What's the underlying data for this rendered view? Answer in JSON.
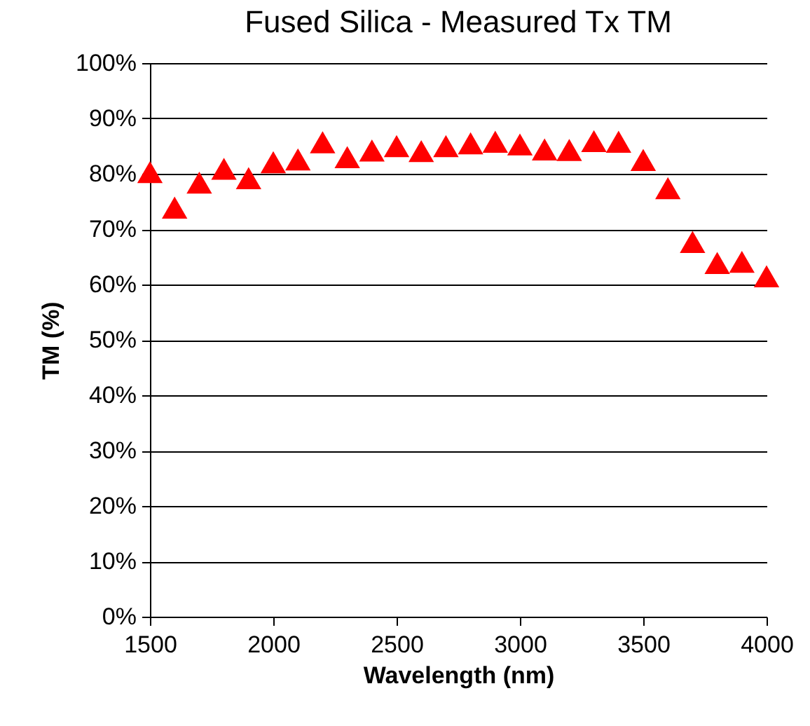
{
  "chart_data": {
    "type": "scatter",
    "title": "Fused Silica - Measured Tx TM",
    "xlabel": "Wavelength (nm)",
    "ylabel": "TM (%)",
    "x": [
      1500,
      1600,
      1700,
      1800,
      1900,
      2000,
      2100,
      2200,
      2300,
      2400,
      2500,
      2600,
      2700,
      2800,
      2900,
      3000,
      3100,
      3200,
      3300,
      3400,
      3500,
      3600,
      3700,
      3800,
      3900,
      4000
    ],
    "series": [
      {
        "color": "#ff0000",
        "values": [
          80.3,
          73.9,
          78.4,
          80.9,
          79.2,
          82.1,
          82.6,
          85.7,
          83.0,
          84.2,
          85.0,
          84.1,
          85.0,
          85.5,
          85.8,
          85.3,
          84.4,
          84.3,
          85.9,
          85.8,
          82.5,
          77.4,
          67.7,
          63.9,
          64.1,
          61.5
        ]
      }
    ],
    "xlim": [
      1500,
      4000
    ],
    "xticks": [
      1500,
      2000,
      2500,
      3000,
      3500,
      4000
    ],
    "ylim": [
      0,
      100
    ],
    "yticks": [
      {
        "value": 0,
        "label": "0%"
      },
      {
        "value": 10,
        "label": "10%"
      },
      {
        "value": 20,
        "label": "20%"
      },
      {
        "value": 30,
        "label": "30%"
      },
      {
        "value": 40,
        "label": "40%"
      },
      {
        "value": 50,
        "label": "50%"
      },
      {
        "value": 60,
        "label": "60%"
      },
      {
        "value": 70,
        "label": "70%"
      },
      {
        "value": 80,
        "label": "80%"
      },
      {
        "value": 90,
        "label": "90%"
      },
      {
        "value": 100,
        "label": "100%"
      }
    ],
    "grid": "y",
    "marker": "triangle"
  }
}
